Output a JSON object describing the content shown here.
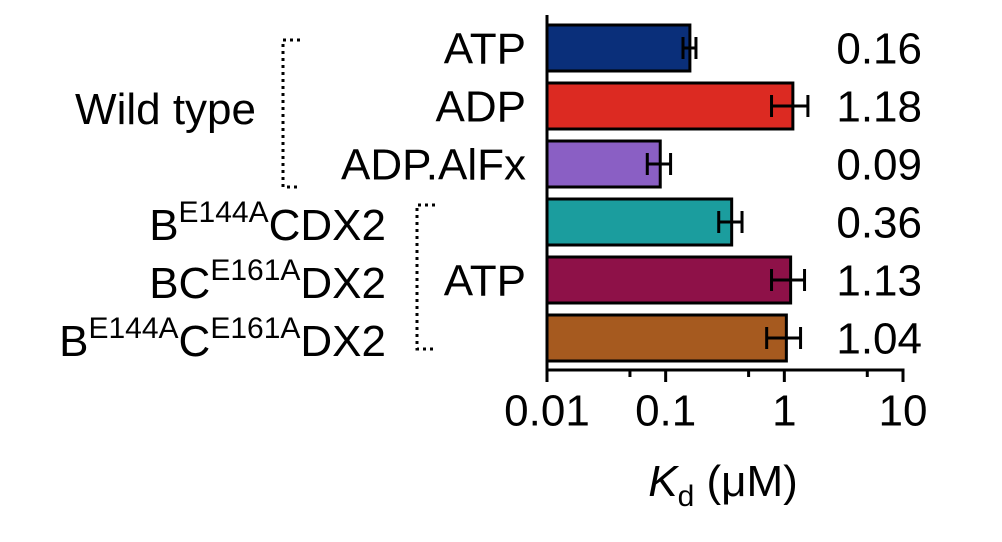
{
  "chart_data": {
    "type": "bar",
    "orientation": "horizontal",
    "categories": [
      "ATP",
      "ADP",
      "ADP.AlFx",
      null,
      "ATP",
      null
    ],
    "row_labels": [
      null,
      [
        {
          "text": "Wild type"
        }
      ],
      null,
      [
        {
          "text": "B"
        },
        {
          "text": "E144A",
          "sup": true
        },
        {
          "text": "CDX2"
        }
      ],
      [
        {
          "text": "BC"
        },
        {
          "text": "E161A",
          "sup": true
        },
        {
          "text": "DX2"
        }
      ],
      [
        {
          "text": "B"
        },
        {
          "text": "E144A",
          "sup": true
        },
        {
          "text": "C"
        },
        {
          "text": "E161A",
          "sup": true
        },
        {
          "text": "DX2"
        }
      ]
    ],
    "values": [
      0.16,
      1.18,
      0.09,
      0.36,
      1.13,
      1.04
    ],
    "errors": [
      0.02,
      0.4,
      0.02,
      0.08,
      0.35,
      0.33
    ],
    "colors": [
      "#0a2f7a",
      "#dc2a22",
      "#8a5fc4",
      "#1b9d9e",
      "#8e1148",
      "#a65a1f"
    ],
    "xlabel": {
      "symbol": "K",
      "subscript": "d",
      "unit": "(μM)"
    },
    "xscale": "log",
    "xlim": [
      0.01,
      10
    ],
    "xticks": [
      0.01,
      0.1,
      1,
      10
    ],
    "minor_xticks": [
      0.05,
      0.5,
      5
    ]
  }
}
